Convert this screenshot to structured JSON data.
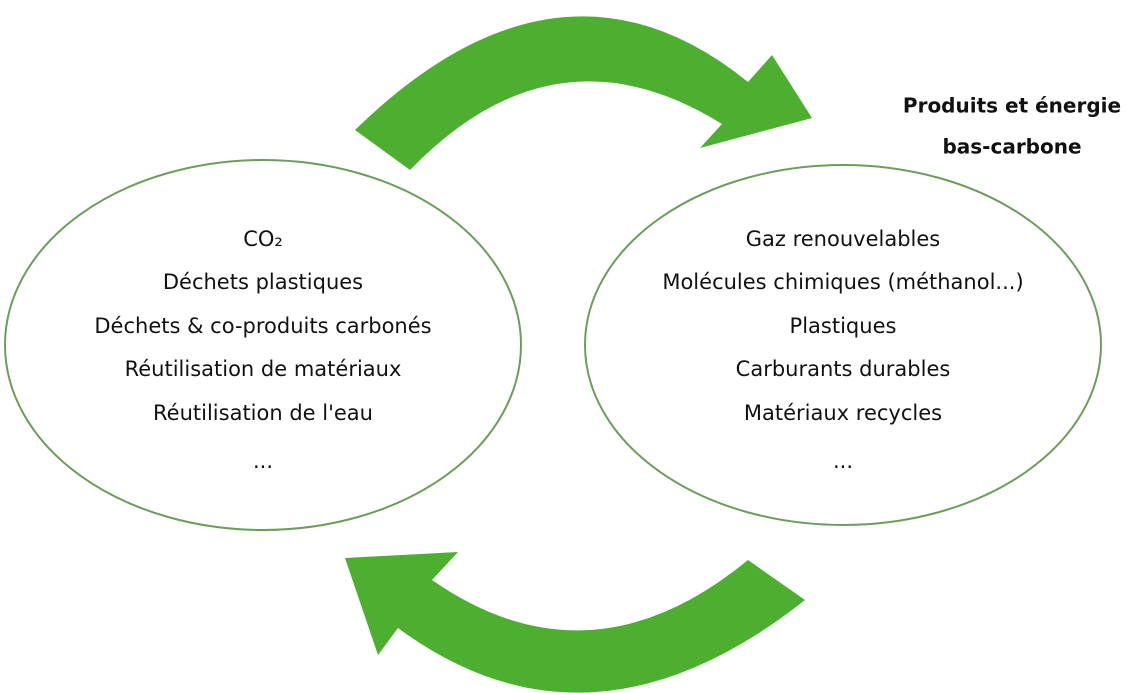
{
  "label": [
    "Produits et énergie",
    "bas-carbone"
  ],
  "left": {
    "items": [
      "CO₂",
      "Déchets plastiques",
      "Déchets & co-produits carbonés",
      "Réutilisation de matériaux",
      "Réutilisation de l'eau",
      "..."
    ]
  },
  "right": {
    "items": [
      "Gaz renouvelables",
      "Molécules chimiques (méthanol...)",
      "Plastiques",
      "Carburants durables",
      "Matériaux recycles",
      "..."
    ]
  }
}
